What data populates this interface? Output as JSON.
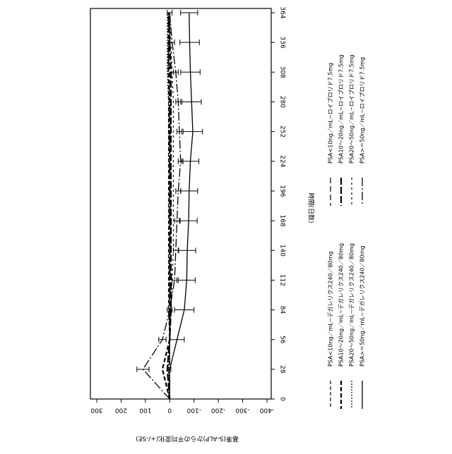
{
  "chart_data": {
    "type": "line",
    "x_label": "時間(日数)",
    "y_label": "基準(S-ALP)からの平均変化(+/-SE)",
    "x": [
      0,
      28,
      56,
      84,
      112,
      140,
      168,
      196,
      224,
      252,
      280,
      308,
      336,
      364
    ],
    "xlim": [
      0,
      364
    ],
    "xticks": [
      0,
      28,
      56,
      84,
      112,
      140,
      168,
      196,
      224,
      252,
      280,
      308,
      336,
      364
    ],
    "ylim": [
      -400,
      300
    ],
    "yticks": [
      -400,
      -300,
      -200,
      -100,
      0,
      100,
      200,
      300
    ],
    "series": [
      {
        "name": "PSA<10ng／mL−デガレリクス240／80mg",
        "color": "#000000",
        "dash": "5,3",
        "width": 1.2,
        "values": [
          0,
          0,
          0,
          5,
          5,
          5,
          5,
          5,
          5,
          5,
          5,
          5,
          5,
          5
        ]
      },
      {
        "name": "PSA10〜20ng／mL−デガレリクス240／80mg",
        "color": "#000000",
        "dash": "6,3",
        "width": 2.2,
        "values": [
          0,
          30,
          0,
          0,
          0,
          0,
          0,
          0,
          0,
          0,
          0,
          5,
          5,
          5
        ]
      },
      {
        "name": "PSA20〜50ng／mL−デガレリクス240／80mg",
        "color": "#000000",
        "dash": "2,2",
        "width": 1.2,
        "values": [
          0,
          5,
          0,
          0,
          0,
          0,
          0,
          0,
          0,
          5,
          5,
          10,
          10,
          10
        ]
      },
      {
        "name": "PSA>＝50ng／mL−デガレリクス240／80mg",
        "color": "#000000",
        "dash": "none",
        "width": 1.3,
        "values": [
          0,
          0,
          -30,
          -60,
          -70,
          -72,
          -78,
          -80,
          -85,
          -95,
          -90,
          -85,
          -82,
          -80
        ],
        "errors": [
          0,
          5,
          30,
          40,
          35,
          35,
          35,
          35,
          35,
          40,
          40,
          40,
          40,
          35
        ]
      },
      {
        "name": "PSA<10ng／mL−ロイプロリド7.5mg",
        "color": "#000000",
        "dash": "8,4",
        "width": 1.2,
        "values": [
          0,
          0,
          0,
          0,
          0,
          0,
          0,
          0,
          0,
          0,
          0,
          0,
          0,
          0
        ]
      },
      {
        "name": "PSA10〜20ng／mL−ロイプロリド7.5mg",
        "color": "#000000",
        "dash": "10,3",
        "width": 2.2,
        "values": [
          0,
          10,
          0,
          -5,
          -5,
          -5,
          -5,
          -5,
          -5,
          -5,
          -5,
          -5,
          0,
          5
        ]
      },
      {
        "name": "PSA20〜50ng／mL−ロイプロリド7.5mg",
        "color": "#000000",
        "dash": "3,4",
        "width": 1.2,
        "values": [
          0,
          0,
          0,
          -5,
          -10,
          -15,
          -15,
          -15,
          -15,
          -15,
          -15,
          -10,
          -5,
          0
        ]
      },
      {
        "name": "PSA>＝50ng／mL−ロイプロリド7.5mg",
        "color": "#000000",
        "dash": "12,3,2,3",
        "width": 1.3,
        "values": [
          0,
          110,
          30,
          0,
          -20,
          -25,
          -30,
          -35,
          -45,
          -40,
          -35,
          -25,
          -10,
          0
        ],
        "errors": [
          0,
          25,
          15,
          10,
          10,
          10,
          10,
          10,
          10,
          10,
          10,
          10,
          10,
          10
        ]
      }
    ]
  }
}
